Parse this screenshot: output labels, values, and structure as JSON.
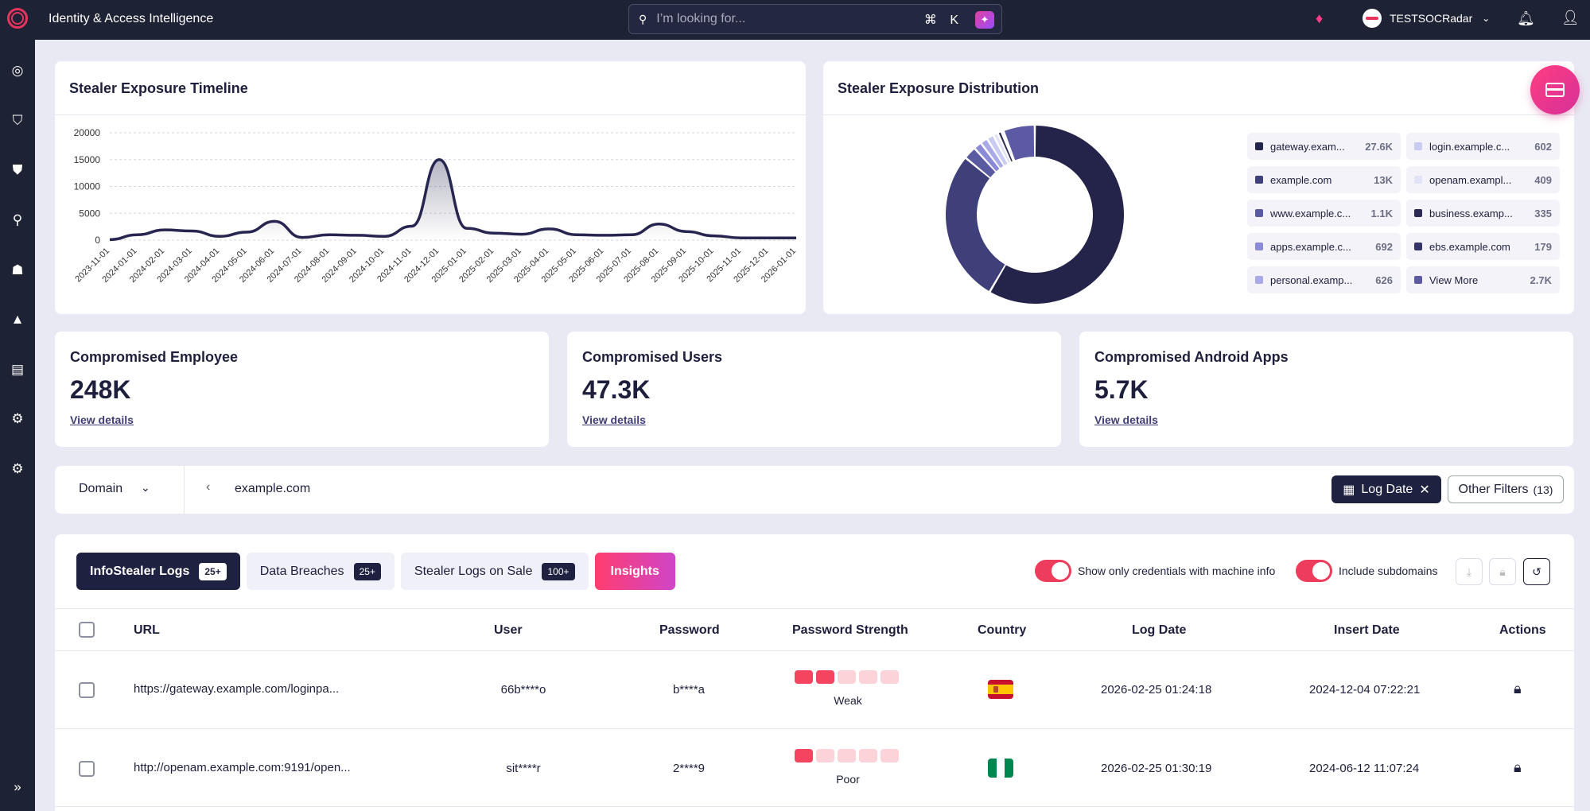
{
  "app": {
    "title": "Identity & Access Intelligence",
    "search_placeholder": "I’m looking for...",
    "search_shortcut": "⌘ K",
    "account": "TESTSOCRadar"
  },
  "timeline": {
    "title": "Stealer Exposure Timeline"
  },
  "distribution": {
    "title": "Stealer Exposure Distribution",
    "legend": [
      {
        "name": "gateway.exam...",
        "value": "27.6K",
        "color": "#24244a"
      },
      {
        "name": "login.example.c...",
        "value": "602",
        "color": "#c9cbf0"
      },
      {
        "name": "example.com",
        "value": "13K",
        "color": "#3f3f7a"
      },
      {
        "name": "openam.exampl...",
        "value": "409",
        "color": "#e2e3f7"
      },
      {
        "name": "www.example.c...",
        "value": "1.1K",
        "color": "#5a5aa0"
      },
      {
        "name": "business.examp...",
        "value": "335",
        "color": "#2a2a55"
      },
      {
        "name": "apps.example.c...",
        "value": "692",
        "color": "#8a8ad6"
      },
      {
        "name": "ebs.example.com",
        "value": "179",
        "color": "#34346a"
      },
      {
        "name": "personal.examp...",
        "value": "626",
        "color": "#a9aae6"
      },
      {
        "name": "View More",
        "value": "2.7K",
        "color": "#5d5aa5"
      }
    ]
  },
  "stats": [
    {
      "title": "Compromised Employee",
      "value": "248K",
      "link": "View details"
    },
    {
      "title": "Compromised Users",
      "value": "47.3K",
      "link": "View details"
    },
    {
      "title": "Compromised Android Apps",
      "value": "5.7K",
      "link": "View details"
    }
  ],
  "filter": {
    "type": "Domain",
    "value": "example.com",
    "log_date": "Log Date",
    "other_filters": "Other Filters",
    "other_count": "(13)"
  },
  "tabs": [
    {
      "label": "InfoStealer Logs",
      "badge": "25+"
    },
    {
      "label": "Data Breaches",
      "badge": "25+"
    },
    {
      "label": "Stealer Logs on Sale",
      "badge": "100+"
    },
    {
      "label": "Insights"
    }
  ],
  "toggles": {
    "machine_info": "Show only credentials with machine info",
    "subdomains": "Include subdomains"
  },
  "table": {
    "headers": [
      "URL",
      "User",
      "Password",
      "Password Strength",
      "Country",
      "Log Date",
      "Insert Date",
      "Actions"
    ],
    "rows": [
      {
        "url": "https://gateway.example.com/loginpa...",
        "user": "66b****o",
        "password": "b****a",
        "strength": "Weak",
        "strength_level": 2,
        "country": "Spain",
        "log_date": "2026-02-25 01:24:18",
        "insert_date": "2024-12-04 07:22:21"
      },
      {
        "url": "http://openam.example.com:9191/open...",
        "user": "sit****r",
        "password": "2****9",
        "strength": "Poor",
        "strength_level": 1,
        "country": "Nigeria",
        "log_date": "2026-02-25 01:30:19",
        "insert_date": "2024-06-12 11:07:24"
      }
    ]
  },
  "chart_data": [
    {
      "type": "area",
      "y_ticks": [
        0,
        5000,
        10000,
        15000,
        20000
      ],
      "ylim": [
        0,
        20000
      ],
      "x": [
        "2023-11-01",
        "2024-01-01",
        "2024-02-01",
        "2024-03-01",
        "2024-04-01",
        "2024-05-01",
        "2024-06-01",
        "2024-07-01",
        "2024-08-01",
        "2024-09-01",
        "2024-10-01",
        "2024-11-01",
        "2024-12-01",
        "2025-01-01",
        "2025-02-01",
        "2025-03-01",
        "2025-04-01",
        "2025-05-01",
        "2025-06-01",
        "2025-07-01",
        "2025-08-01",
        "2025-09-01",
        "2025-10-01",
        "2025-11-01",
        "2025-12-01",
        "2026-01-01"
      ],
      "values": [
        100,
        1000,
        1900,
        1700,
        700,
        1500,
        3500,
        500,
        1000,
        900,
        700,
        2600,
        15000,
        2200,
        1300,
        1100,
        2100,
        1000,
        900,
        1000,
        3000,
        1600,
        800,
        400,
        400,
        400
      ]
    },
    {
      "type": "pie",
      "labels": [
        "gateway.exam...",
        "example.com",
        "www.example.c...",
        "apps.example.c...",
        "personal.examp...",
        "login.example.c...",
        "openam.exampl...",
        "business.examp...",
        "ebs.example.com",
        "View More"
      ],
      "values": [
        27600,
        13000,
        1100,
        692,
        626,
        602,
        409,
        335,
        179,
        2700
      ]
    }
  ]
}
